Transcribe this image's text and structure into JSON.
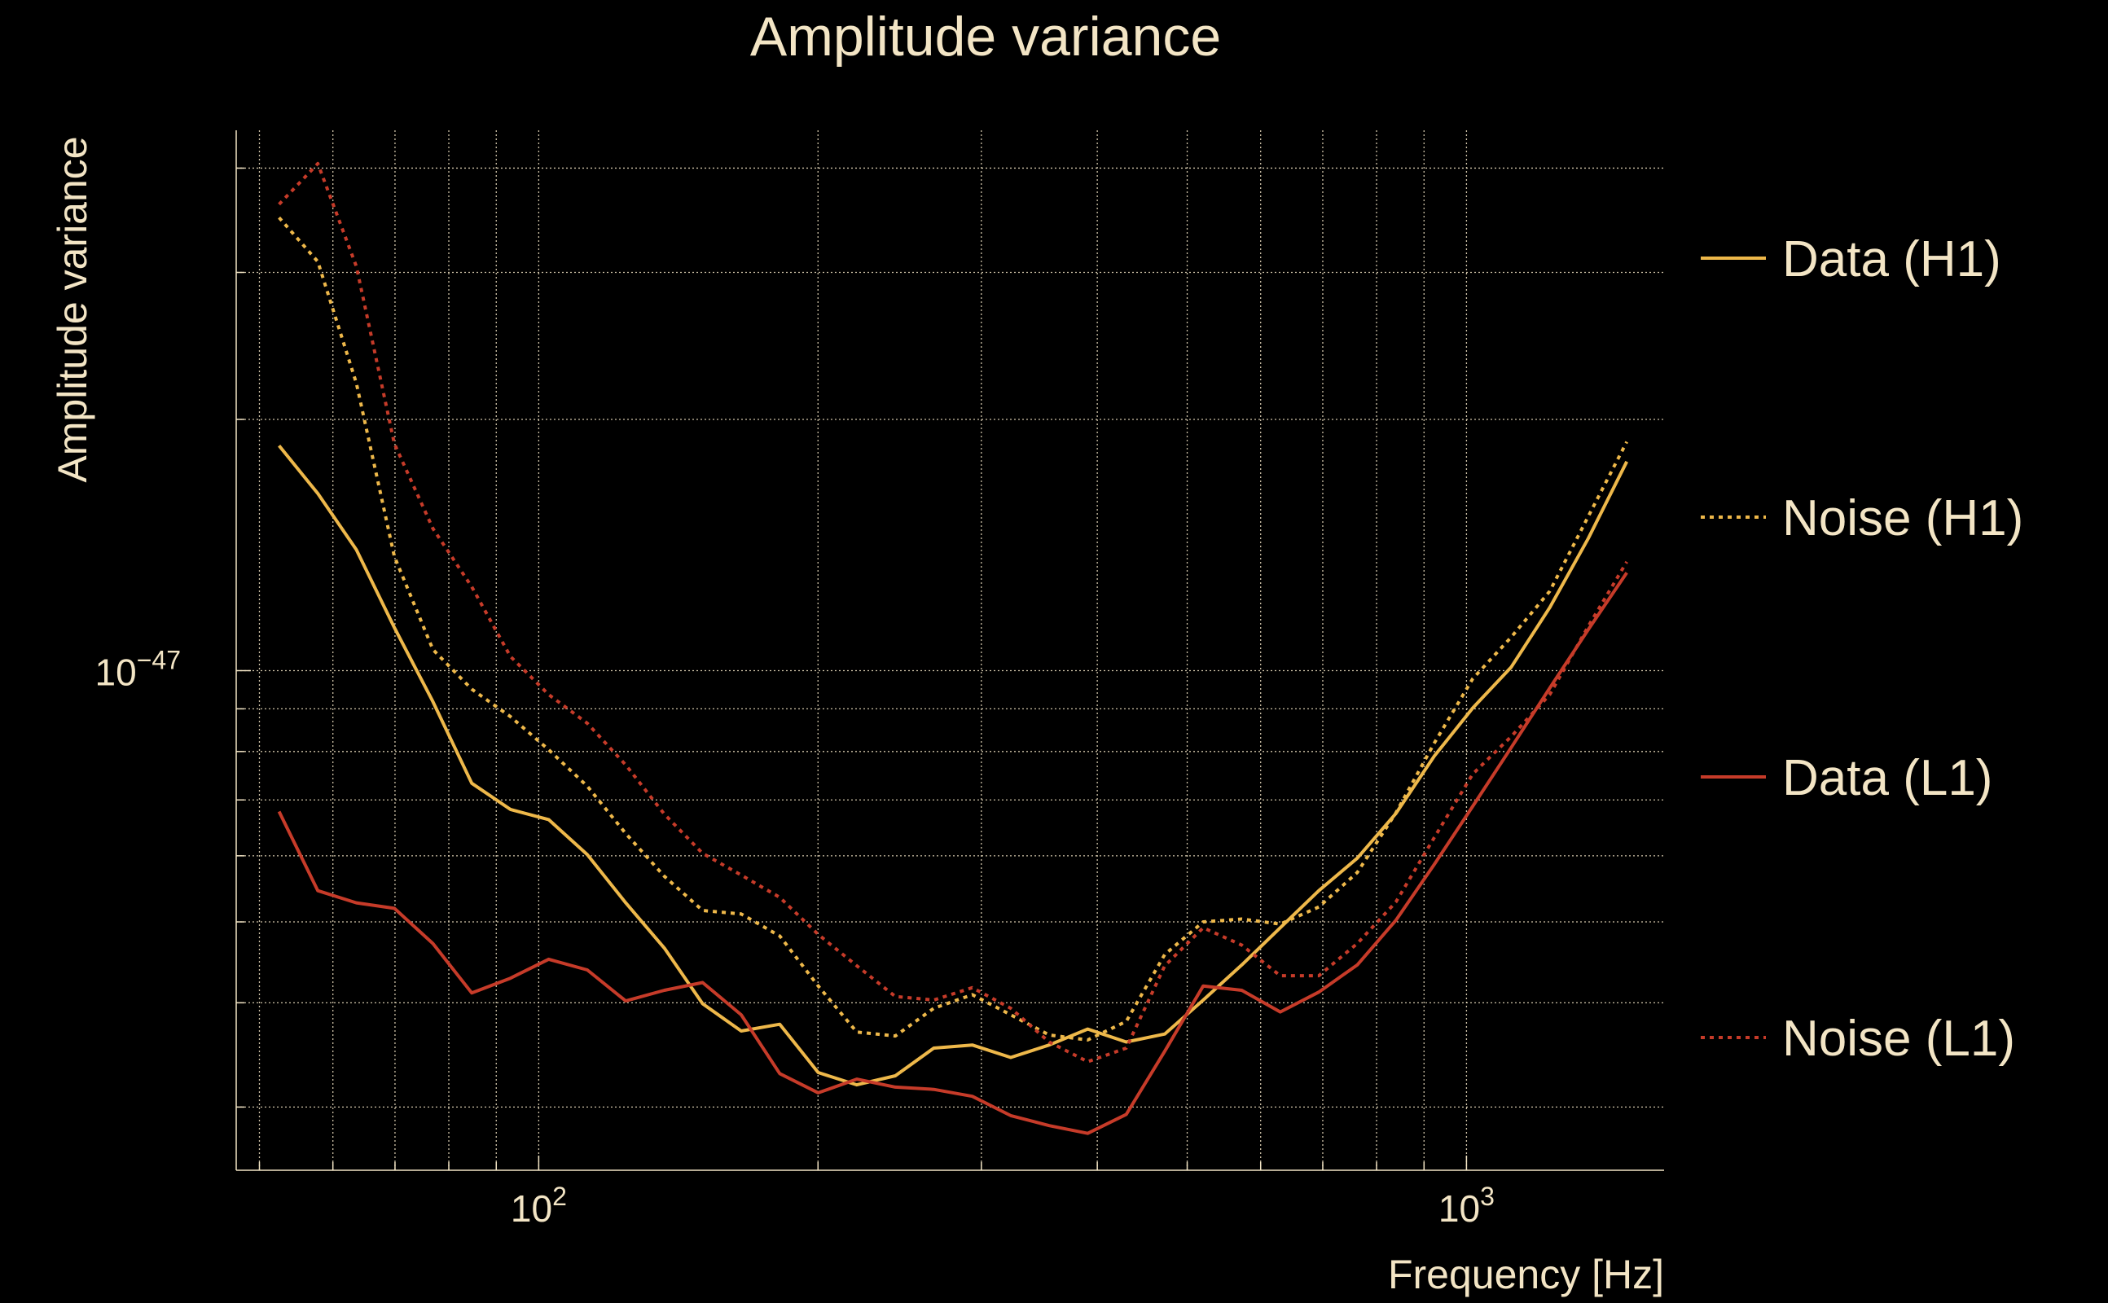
{
  "chart_data": {
    "type": "line",
    "title": "Amplitude variance",
    "xlabel": "Frequency [Hz]",
    "ylabel": "Amplitude variance",
    "xscale": "log",
    "yscale": "log",
    "xlim": [
      47.2,
      1633
    ],
    "y_unit": 1e-48,
    "ylim": [
      2.52,
      44.4
    ],
    "grid": true,
    "legend_position": "right-outside",
    "x_ticks": [
      {
        "value": 100,
        "base": "10",
        "exp": "2"
      },
      {
        "value": 1000,
        "base": "10",
        "exp": "3"
      }
    ],
    "y_ticks": [
      {
        "value": 10,
        "base": "10",
        "exp": "−47"
      }
    ],
    "x_minor_grid": [
      50,
      60,
      70,
      80,
      90,
      100,
      200,
      300,
      400,
      500,
      600,
      700,
      800,
      900,
      1000
    ],
    "y_minor_grid": [
      3,
      4,
      5,
      6,
      7,
      8,
      9,
      10,
      20,
      30,
      40
    ],
    "x": [
      52.5,
      57.8,
      63.6,
      69.9,
      76.9,
      84.7,
      93.2,
      102.5,
      112.8,
      124.1,
      136.6,
      150.2,
      165.3,
      181.9,
      200.1,
      220.2,
      242.3,
      266.6,
      293.3,
      322.7,
      355.0,
      390.6,
      429.8,
      472.9,
      520.3,
      572.5,
      629.9,
      693.1,
      762.6,
      839.0,
      923.2,
      1015.6,
      1117.5,
      1229.5,
      1352.8,
      1488.5
    ],
    "series": [
      {
        "name": "Data (H1)",
        "color": "#eeb84a",
        "style": "solid",
        "values": [
          18.6,
          16.3,
          13.96,
          11.26,
          9.18,
          7.33,
          6.82,
          6.63,
          6.02,
          5.27,
          4.65,
          3.99,
          3.7,
          3.77,
          3.3,
          3.19,
          3.27,
          3.53,
          3.56,
          3.44,
          3.56,
          3.72,
          3.59,
          3.67,
          4.03,
          4.44,
          4.92,
          5.45,
          5.96,
          6.74,
          7.9,
          9.02,
          10.1,
          11.9,
          14.4,
          17.8
        ]
      },
      {
        "name": "Noise (H1)",
        "color": "#eeb84a",
        "style": "dotted",
        "values": [
          34.9,
          30.9,
          22.1,
          13.7,
          10.6,
          9.5,
          8.81,
          8.04,
          7.27,
          6.38,
          5.67,
          5.16,
          5.11,
          4.81,
          4.19,
          3.69,
          3.65,
          3.94,
          4.09,
          3.87,
          3.66,
          3.61,
          3.8,
          4.57,
          5.0,
          5.04,
          4.97,
          5.21,
          5.73,
          6.75,
          8.19,
          9.78,
          10.97,
          12.45,
          15.3,
          18.8
        ]
      },
      {
        "name": "Data (L1)",
        "color": "#c63b29",
        "style": "solid",
        "values": [
          6.78,
          5.45,
          5.27,
          5.19,
          4.71,
          4.11,
          4.28,
          4.51,
          4.38,
          4.02,
          4.14,
          4.23,
          3.87,
          3.29,
          3.12,
          3.24,
          3.17,
          3.15,
          3.09,
          2.93,
          2.85,
          2.79,
          2.94,
          3.5,
          4.19,
          4.14,
          3.9,
          4.12,
          4.44,
          5.02,
          5.86,
          6.88,
          8.09,
          9.53,
          11.2,
          13.1
        ]
      },
      {
        "name": "Noise (L1)",
        "color": "#c63b29",
        "style": "dotted",
        "values": [
          36.2,
          40.5,
          30.5,
          18.7,
          14.8,
          12.6,
          10.4,
          9.36,
          8.65,
          7.71,
          6.73,
          6.04,
          5.69,
          5.35,
          4.83,
          4.43,
          4.07,
          4.03,
          4.17,
          3.94,
          3.59,
          3.4,
          3.53,
          4.43,
          4.92,
          4.69,
          4.31,
          4.31,
          4.71,
          5.28,
          6.31,
          7.52,
          8.34,
          9.36,
          11.3,
          13.5
        ]
      }
    ]
  }
}
